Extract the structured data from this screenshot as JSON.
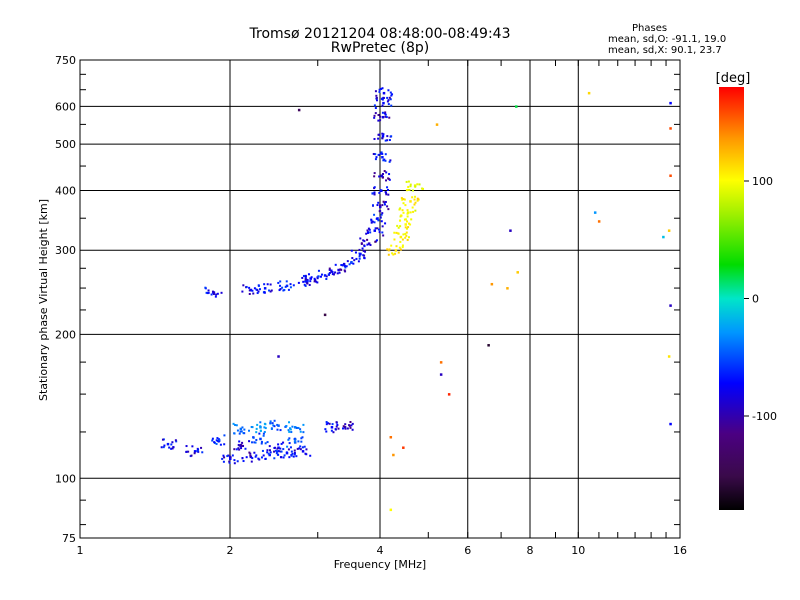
{
  "chart_data": {
    "type": "scatter",
    "title": "Tromsø 20121204 08:48:00-08:49:43",
    "subtitle": "RwPretec (8p)",
    "xlabel": "Frequency [MHz]",
    "ylabel": "Stationary phase Virtual Height [km]",
    "x_scale": "log",
    "y_scale": "log",
    "xlim": [
      1,
      16
    ],
    "ylim": [
      75,
      750
    ],
    "x_ticks": [
      "1",
      "2",
      "4",
      "6",
      "8",
      "10",
      "16"
    ],
    "y_ticks": [
      "75",
      "100",
      "200",
      "300",
      "400",
      "500",
      "600",
      "750"
    ],
    "grid": true,
    "phase_header": "Phases",
    "phase_o": "mean, sd,O: -91.1, 19.0",
    "phase_x": "mean, sd,X:  90.1, 23.7",
    "colorbar": {
      "label": "[deg]",
      "range": [
        -180,
        180
      ],
      "ticks": [
        "100",
        "0",
        "-100"
      ],
      "tick_values": [
        100,
        0,
        -100
      ],
      "colormap": "rainbow (black-purple-blue-cyan-green-yellow-orange-red)"
    },
    "clusters": [
      {
        "x": [
          1.85,
          2.2,
          2.35,
          2.6,
          2.85
        ],
        "y": [
          245,
          248,
          250,
          253,
          258
        ],
        "phase": [
          -98,
          -102,
          -95,
          -90,
          -100
        ]
      },
      {
        "x": [
          2.9,
          3.1,
          3.3,
          3.5,
          3.65,
          3.8,
          3.9,
          3.95
        ],
        "y": [
          262,
          266,
          273,
          283,
          295,
          310,
          330,
          350
        ],
        "phase": [
          -100,
          -95,
          -105,
          -92,
          -98,
          -110,
          -100,
          -95
        ]
      },
      {
        "x": [
          4.0,
          4.02,
          4.03,
          4.04,
          4.05,
          4.05,
          4.06,
          4.07
        ],
        "y": [
          370,
          400,
          430,
          470,
          520,
          570,
          610,
          640
        ],
        "phase": [
          -105,
          -100,
          -110,
          -95,
          -100,
          -105,
          -98,
          -102
        ]
      },
      {
        "x": [
          4.3,
          4.4,
          4.5,
          4.55,
          4.6,
          4.7
        ],
        "y": [
          300,
          320,
          340,
          360,
          380,
          410
        ],
        "phase": [
          110,
          105,
          100,
          95,
          108,
          90
        ]
      },
      {
        "x": [
          1.5,
          1.7,
          1.9,
          2.1,
          2.3,
          2.5,
          2.7
        ],
        "y": [
          118,
          114,
          120,
          117,
          121,
          116,
          119
        ],
        "phase": [
          -95,
          -100,
          -90,
          -105,
          -85,
          -98,
          -80
        ]
      },
      {
        "x": [
          2.0,
          2.2,
          2.4,
          2.6,
          2.8
        ],
        "y": [
          110,
          111,
          112,
          113,
          114
        ],
        "phase": [
          -100,
          -105,
          -95,
          -98,
          -102
        ]
      },
      {
        "x": [
          2.1,
          2.3,
          2.5,
          2.7
        ],
        "y": [
          127,
          128,
          129,
          128
        ],
        "phase": [
          -70,
          -60,
          -75,
          -65
        ]
      },
      {
        "x": [
          3.2,
          3.4
        ],
        "y": [
          128,
          128
        ],
        "phase": [
          -100,
          -110
        ]
      }
    ],
    "isolated": {
      "x": [
        2.75,
        3.1,
        2.5,
        4.2,
        4.25,
        4.45,
        5.3,
        5.3,
        5.5,
        6.6,
        6.7,
        7.2,
        7.3,
        7.5,
        7.55,
        10.5,
        10.8,
        11.0,
        14.8,
        15.2,
        15.3,
        15.3,
        15.3,
        15.3,
        15.2,
        15.3,
        5.2,
        4.2
      ],
      "y": [
        590,
        220,
        180,
        122,
        112,
        116,
        175,
        165,
        150,
        190,
        255,
        250,
        330,
        600,
        270,
        640,
        360,
        345,
        320,
        330,
        610,
        540,
        430,
        230,
        180,
        130,
        550,
        86
      ],
      "phase": [
        -140,
        -150,
        -110,
        150,
        140,
        165,
        150,
        -110,
        170,
        -160,
        140,
        130,
        -110,
        0,
        120,
        115,
        -60,
        150,
        -40,
        120,
        -100,
        160,
        160,
        -110,
        110,
        -100,
        130,
        100
      ]
    }
  }
}
